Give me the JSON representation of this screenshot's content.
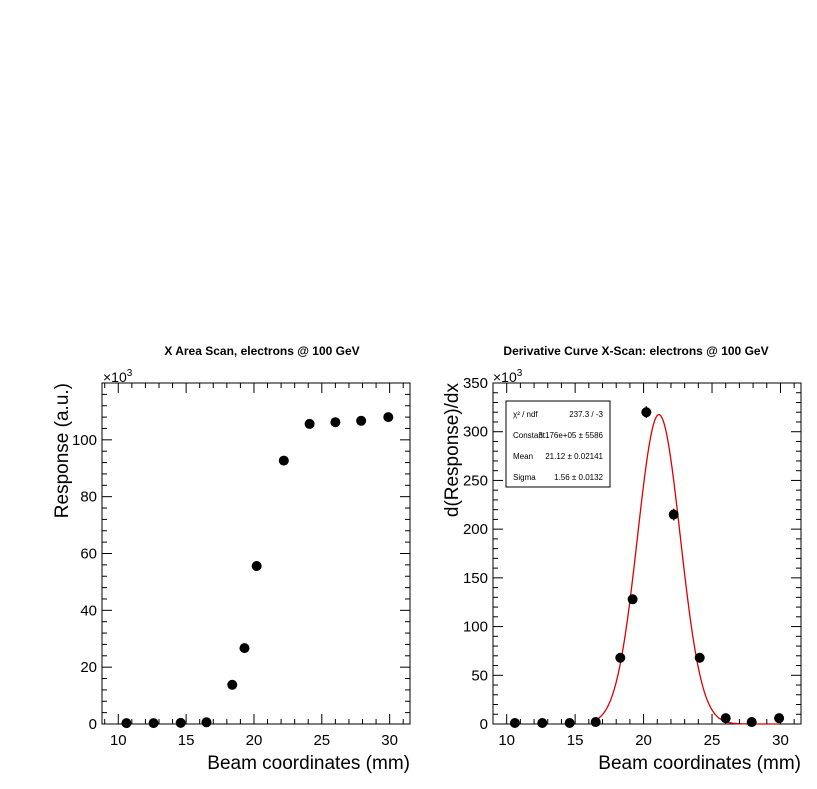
{
  "chart_data": [
    {
      "type": "scatter",
      "title": "X Area Scan, electrons @ 100 GeV",
      "xlabel": "Beam coordinates (mm)",
      "ylabel": "Response (a.u.)",
      "y_multiplier": "×10",
      "y_multiplier_exp": "3",
      "xlim": [
        8.8,
        31.5
      ],
      "ylim": [
        0,
        120
      ],
      "xticks": [
        "10",
        "15",
        "20",
        "25",
        "30"
      ],
      "yticks": [
        "0",
        "20",
        "40",
        "60",
        "80",
        "100"
      ],
      "points": [
        {
          "x": 10.6,
          "y": 0.3
        },
        {
          "x": 12.6,
          "y": 0.3
        },
        {
          "x": 14.6,
          "y": 0.4
        },
        {
          "x": 16.5,
          "y": 0.6
        },
        {
          "x": 18.4,
          "y": 13.8
        },
        {
          "x": 19.3,
          "y": 26.7
        },
        {
          "x": 20.2,
          "y": 55.6
        },
        {
          "x": 22.2,
          "y": 92.7
        },
        {
          "x": 24.1,
          "y": 105.6
        },
        {
          "x": 26.0,
          "y": 106.2
        },
        {
          "x": 27.9,
          "y": 106.7
        },
        {
          "x": 29.9,
          "y": 108.0
        }
      ]
    },
    {
      "type": "scatter",
      "title": "Derivative Curve X-Scan: electrons @ 100 GeV",
      "xlabel": "Beam coordinates (mm)",
      "ylabel": "d(Response)/dx",
      "y_multiplier": "×10",
      "y_multiplier_exp": "3",
      "xlim": [
        9.0,
        31.5
      ],
      "ylim": [
        0,
        350
      ],
      "xticks": [
        "10",
        "15",
        "20",
        "25",
        "30"
      ],
      "yticks": [
        "0",
        "50",
        "100",
        "150",
        "200",
        "250",
        "300",
        "350"
      ],
      "points": [
        {
          "x": 10.6,
          "y": 1,
          "err": 0
        },
        {
          "x": 12.6,
          "y": 1,
          "err": 0
        },
        {
          "x": 14.6,
          "y": 1,
          "err": 0
        },
        {
          "x": 16.5,
          "y": 2,
          "err": 0
        },
        {
          "x": 18.3,
          "y": 68,
          "err": 0
        },
        {
          "x": 19.2,
          "y": 128,
          "err": 0
        },
        {
          "x": 20.2,
          "y": 320,
          "err": 6
        },
        {
          "x": 22.2,
          "y": 215,
          "err": 6
        },
        {
          "x": 24.1,
          "y": 68,
          "err": 0
        },
        {
          "x": 26.0,
          "y": 6,
          "err": 0
        },
        {
          "x": 27.9,
          "y": 2,
          "err": 0
        },
        {
          "x": 29.9,
          "y": 6,
          "err": 0
        }
      ],
      "fit": {
        "function": "gaussian",
        "color": "#dd0000",
        "constant_value": 317.6,
        "mean_value": 21.12,
        "sigma_value": 1.56,
        "range": [
          16.2,
          29.9
        ]
      },
      "stats_box": {
        "rows": [
          {
            "label": "χ² / ndf",
            "value": "237.3 / -3"
          },
          {
            "label": "Constant",
            "value": "3.176e+05 ±  5586"
          },
          {
            "label": "Mean",
            "value": "21.12 ± 0.02141"
          },
          {
            "label": "Sigma",
            "value": "1.56 ± 0.0132"
          }
        ]
      }
    }
  ]
}
